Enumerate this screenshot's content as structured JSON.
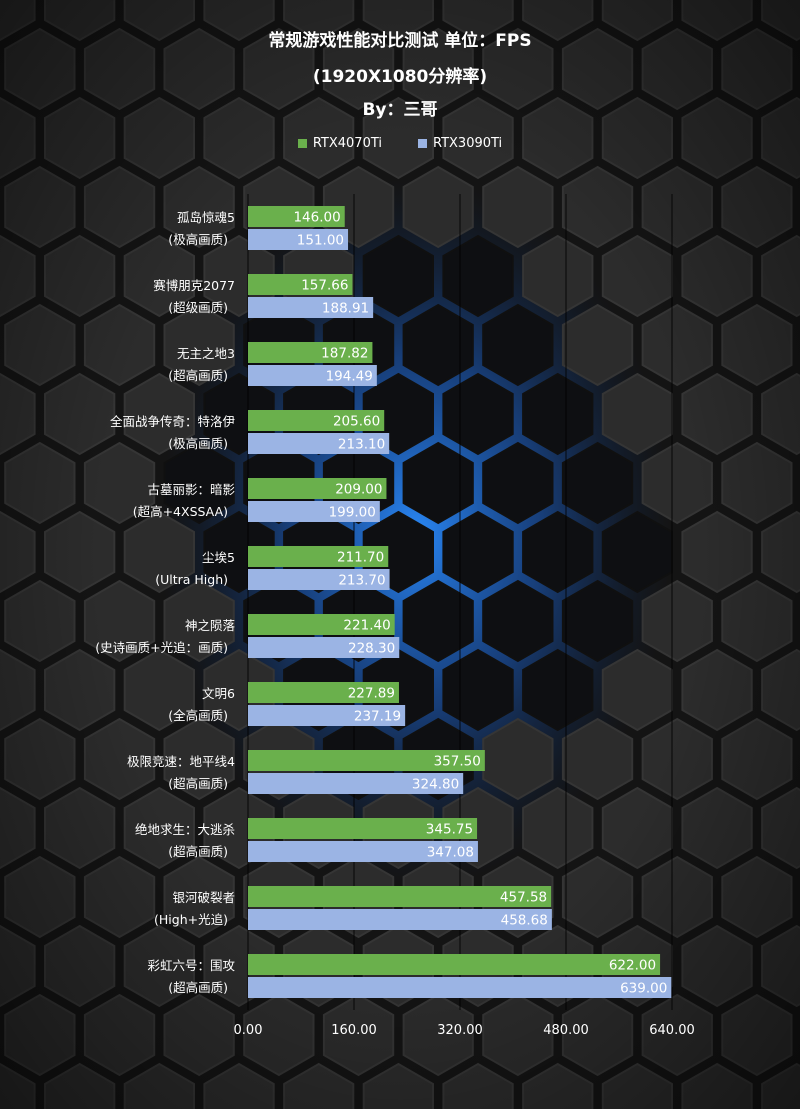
{
  "chart_data": {
    "type": "bar",
    "orientation": "horizontal",
    "title": "常规游戏性能对比测试 单位：FPS",
    "subtitle": "(1920X1080分辨率)",
    "author": "By：三哥",
    "xlim": [
      0,
      640
    ],
    "xticks": [
      "0.00",
      "160.00",
      "320.00",
      "480.00",
      "640.00"
    ],
    "grid": "vertical",
    "legend_position": "top",
    "categories": [
      {
        "name": "孤岛惊魂5",
        "setting": "(极高画质)"
      },
      {
        "name": "赛博朋克2077",
        "setting": "(超级画质)"
      },
      {
        "name": "无主之地3",
        "setting": "(超高画质)"
      },
      {
        "name": "全面战争传奇：特洛伊",
        "setting": "(极高画质)"
      },
      {
        "name": "古墓丽影：暗影",
        "setting": "(超高+4XSSAA)"
      },
      {
        "name": "尘埃5",
        "setting": "(Ultra High)"
      },
      {
        "name": "神之陨落",
        "setting": "(史诗画质+光追：画质)"
      },
      {
        "name": "文明6",
        "setting": "(全高画质)"
      },
      {
        "name": "极限竞速：地平线4",
        "setting": "(超高画质)"
      },
      {
        "name": "绝地求生：大逃杀",
        "setting": "(超高画质)"
      },
      {
        "name": "银河破裂者",
        "setting": "(High+光追)"
      },
      {
        "name": "彩虹六号：围攻",
        "setting": "(超高画质)"
      }
    ],
    "series": [
      {
        "name": "RTX4070Ti",
        "color": "#6ab04c",
        "values": [
          146.0,
          157.66,
          187.82,
          205.6,
          209.0,
          211.7,
          221.4,
          227.89,
          357.5,
          345.75,
          457.58,
          622.0
        ]
      },
      {
        "name": "RTX3090Ti",
        "color": "#9bb4e4",
        "values": [
          151.0,
          188.91,
          194.49,
          213.1,
          199.0,
          213.7,
          228.3,
          237.19,
          324.8,
          347.08,
          458.68,
          639.0
        ]
      }
    ]
  }
}
